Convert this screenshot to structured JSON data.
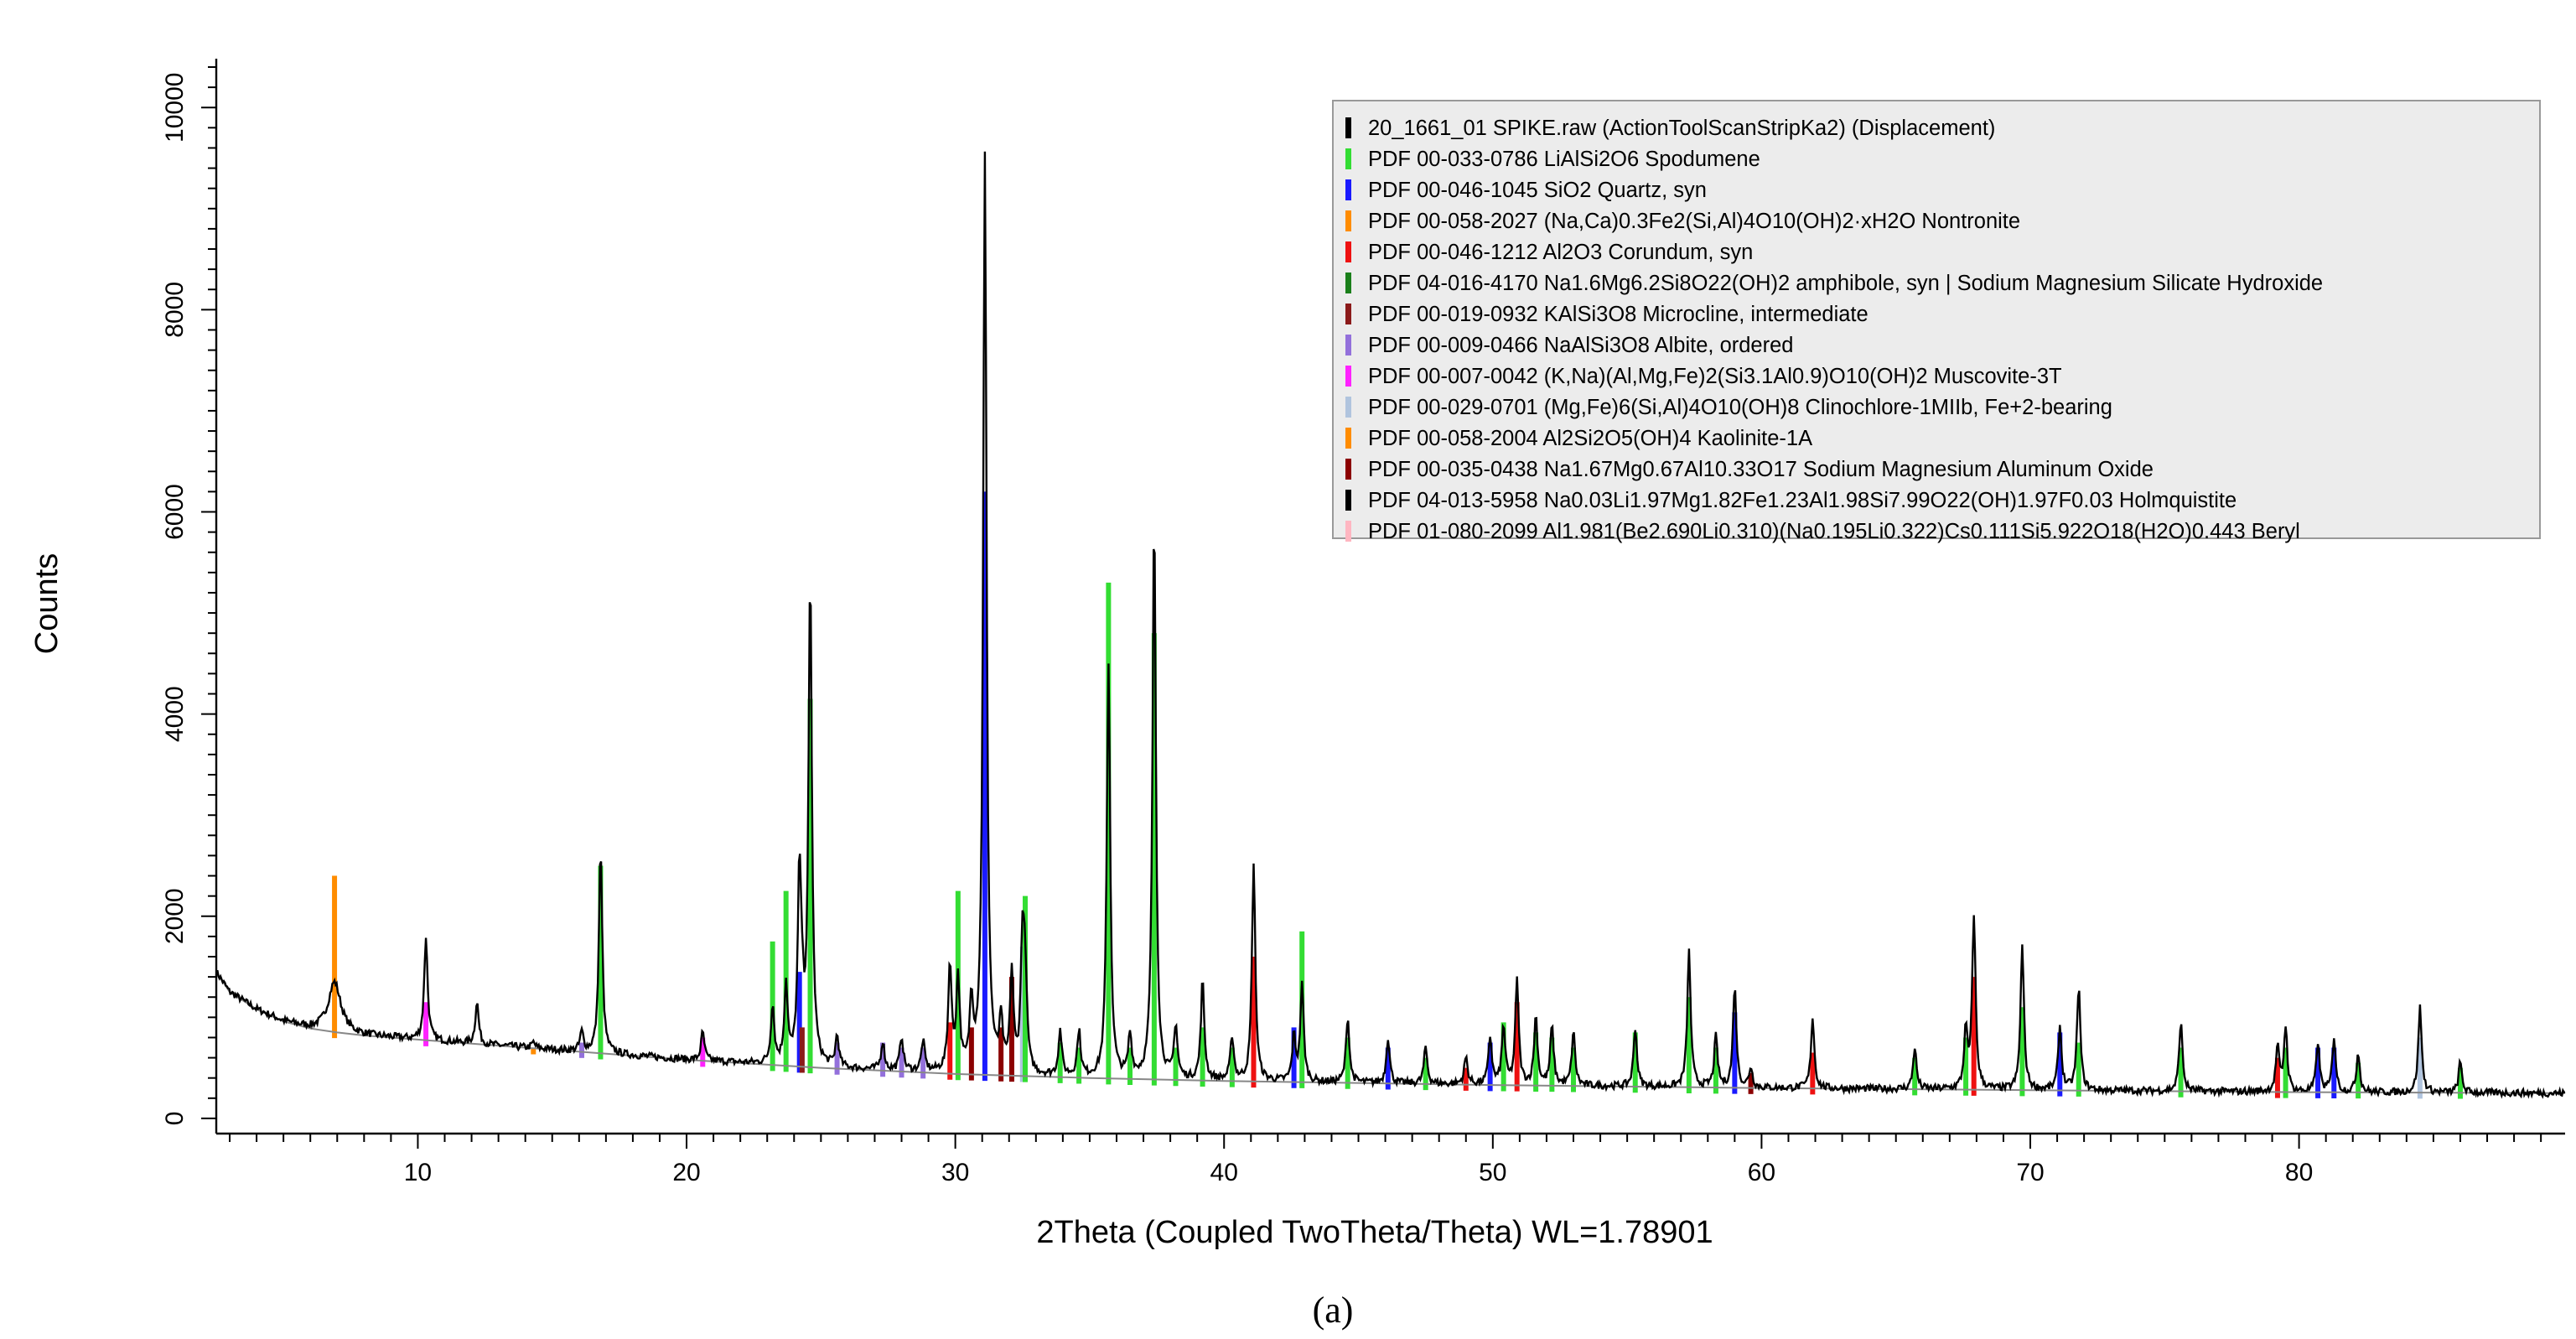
{
  "chart_data": {
    "type": "line",
    "title": "",
    "xlabel": "2Theta (Coupled TwoTheta/Theta) WL=1.78901",
    "ylabel": "Counts",
    "xlim": [
      2.5,
      89.9
    ],
    "ylim": [
      -150,
      10400
    ],
    "x_ticks": [
      10,
      20,
      30,
      40,
      50,
      60,
      70,
      80
    ],
    "x_minor_step": 1,
    "y_ticks": [
      0,
      2000,
      4000,
      6000,
      8000,
      10000
    ],
    "y_minor_step": 200,
    "grid": false,
    "legend_position": "top-right",
    "caption": "(a)",
    "legend": [
      {
        "label": "20_1661_01 SPIKE.raw (ActionToolScanStripKa2) (Displacement)",
        "color": "#000000"
      },
      {
        "label": "PDF 00-033-0786 LiAlSi2O6 Spodumene",
        "color": "#33dd33"
      },
      {
        "label": "PDF 00-046-1045 SiO2 Quartz, syn",
        "color": "#1a1aff"
      },
      {
        "label": "PDF 00-058-2027 (Na,Ca)0.3Fe2(Si,Al)4O10(OH)2·xH2O Nontronite",
        "color": "#ff8c00"
      },
      {
        "label": "PDF 00-046-1212 Al2O3 Corundum, syn",
        "color": "#ee1111"
      },
      {
        "label": "PDF 04-016-4170 Na1.6Mg6.2Si8O22(OH)2 amphibole, syn | Sodium Magnesium Silicate Hydroxide",
        "color": "#1a7f1a"
      },
      {
        "label": "PDF 00-019-0932 KAlSi3O8 Microcline, intermediate",
        "color": "#8b1a1a"
      },
      {
        "label": "PDF 00-009-0466 NaAlSi3O8 Albite, ordered",
        "color": "#9370db"
      },
      {
        "label": "PDF 00-007-0042 (K,Na)(Al,Mg,Fe)2(Si3.1Al0.9)O10(OH)2 Muscovite-3T",
        "color": "#ff22ff"
      },
      {
        "label": "PDF 00-029-0701 (Mg,Fe)6(Si,Al)4O10(OH)8 Clinochlore-1MIIb, Fe+2-bearing",
        "color": "#b0c4de"
      },
      {
        "label": "PDF 00-058-2004 Al2Si2O5(OH)4 Kaolinite-1A",
        "color": "#ff8c00"
      },
      {
        "label": "PDF 00-035-0438 Na1.67Mg0.67Al10.33O17 Sodium Magnesium Aluminum Oxide",
        "color": "#8b0000"
      },
      {
        "label": "PDF 04-013-5958 Na0.03Li1.97Mg1.82Fe1.23Al1.98Si7.99O22(OH)1.97F0.03 Holmquistite",
        "color": "#000000"
      },
      {
        "label": "PDF 01-080-2099 Al1.981(Be2.690Li0.310)(Na0.195Li0.322)Cs0.111Si5.922O18(H2O)0.443 Beryl",
        "color": "#ffb6c1"
      }
    ],
    "background": [
      [
        2.5,
        1450
      ],
      [
        3,
        1250
      ],
      [
        4,
        1080
      ],
      [
        5,
        960
      ],
      [
        6,
        890
      ],
      [
        7,
        850
      ],
      [
        8,
        820
      ],
      [
        10,
        780
      ],
      [
        15,
        680
      ],
      [
        20,
        580
      ],
      [
        25,
        500
      ],
      [
        30,
        440
      ],
      [
        35,
        400
      ],
      [
        40,
        370
      ],
      [
        50,
        330
      ],
      [
        60,
        300
      ],
      [
        70,
        280
      ],
      [
        80,
        260
      ],
      [
        89.9,
        250
      ]
    ],
    "peaks": [
      {
        "x": 6.9,
        "counts": 1350,
        "marker": 2400,
        "phase": 3
      },
      {
        "x": 10.3,
        "counts": 1800,
        "marker": 1150,
        "phase": 8
      },
      {
        "x": 12.2,
        "counts": 1150,
        "marker": 0,
        "phase": 0
      },
      {
        "x": 14.3,
        "counts": 750,
        "marker": 700,
        "phase": 3
      },
      {
        "x": 16.1,
        "counts": 850,
        "marker": 750,
        "phase": 7
      },
      {
        "x": 16.8,
        "counts": 2650,
        "marker": 2500,
        "phase": 1
      },
      {
        "x": 20.6,
        "counts": 850,
        "marker": 800,
        "phase": 8
      },
      {
        "x": 23.2,
        "counts": 1100,
        "marker": 1750,
        "phase": 1
      },
      {
        "x": 23.7,
        "counts": 1300,
        "marker": 2250,
        "phase": 1
      },
      {
        "x": 24.2,
        "counts": 2350,
        "marker": 1450,
        "phase": 2
      },
      {
        "x": 24.3,
        "counts": 900,
        "marker": 900,
        "phase": 6
      },
      {
        "x": 24.6,
        "counts": 5300,
        "marker": 4150,
        "phase": 1
      },
      {
        "x": 25.6,
        "counts": 800,
        "marker": 750,
        "phase": 7
      },
      {
        "x": 27.3,
        "counts": 750,
        "marker": 750,
        "phase": 7
      },
      {
        "x": 28.0,
        "counts": 800,
        "marker": 700,
        "phase": 7
      },
      {
        "x": 28.8,
        "counts": 750,
        "marker": 700,
        "phase": 7
      },
      {
        "x": 29.8,
        "counts": 1500,
        "marker": 950,
        "phase": 4
      },
      {
        "x": 30.1,
        "counts": 1350,
        "marker": 2250,
        "phase": 1
      },
      {
        "x": 30.6,
        "counts": 1100,
        "marker": 900,
        "phase": 11
      },
      {
        "x": 31.1,
        "counts": 9500,
        "marker": 6200,
        "phase": 2
      },
      {
        "x": 31.7,
        "counts": 900,
        "marker": 900,
        "phase": 11
      },
      {
        "x": 32.1,
        "counts": 1400,
        "marker": 1400,
        "phase": 11
      },
      {
        "x": 32.5,
        "counts": 1700,
        "marker": 1700,
        "phase": 9
      },
      {
        "x": 32.6,
        "counts": 1300,
        "marker": 2200,
        "phase": 1
      },
      {
        "x": 33.9,
        "counts": 850,
        "marker": 750,
        "phase": 1
      },
      {
        "x": 34.6,
        "counts": 850,
        "marker": 700,
        "phase": 1
      },
      {
        "x": 35.7,
        "counts": 4500,
        "marker": 5300,
        "phase": 1
      },
      {
        "x": 36.5,
        "counts": 800,
        "marker": 700,
        "phase": 1
      },
      {
        "x": 37.4,
        "counts": 5950,
        "marker": 4800,
        "phase": 1
      },
      {
        "x": 38.2,
        "counts": 900,
        "marker": 700,
        "phase": 1
      },
      {
        "x": 39.2,
        "counts": 1350,
        "marker": 900,
        "phase": 1
      },
      {
        "x": 40.3,
        "counts": 800,
        "marker": 700,
        "phase": 1
      },
      {
        "x": 41.1,
        "counts": 2500,
        "marker": 1600,
        "phase": 4
      },
      {
        "x": 42.6,
        "counts": 800,
        "marker": 900,
        "phase": 2
      },
      {
        "x": 42.9,
        "counts": 1300,
        "marker": 1850,
        "phase": 1
      },
      {
        "x": 44.6,
        "counts": 1000,
        "marker": 800,
        "phase": 1
      },
      {
        "x": 46.1,
        "counts": 800,
        "marker": 700,
        "phase": 2
      },
      {
        "x": 47.5,
        "counts": 700,
        "marker": 600,
        "phase": 1
      },
      {
        "x": 49.0,
        "counts": 600,
        "marker": 500,
        "phase": 4
      },
      {
        "x": 49.9,
        "counts": 800,
        "marker": 750,
        "phase": 2
      },
      {
        "x": 50.4,
        "counts": 900,
        "marker": 950,
        "phase": 1
      },
      {
        "x": 50.9,
        "counts": 1350,
        "marker": 1150,
        "phase": 4
      },
      {
        "x": 51.6,
        "counts": 1000,
        "marker": 850,
        "phase": 1
      },
      {
        "x": 52.2,
        "counts": 900,
        "marker": 800,
        "phase": 1
      },
      {
        "x": 53.0,
        "counts": 850,
        "marker": 700,
        "phase": 1
      },
      {
        "x": 55.3,
        "counts": 900,
        "marker": 850,
        "phase": 1
      },
      {
        "x": 57.3,
        "counts": 1650,
        "marker": 1200,
        "phase": 1
      },
      {
        "x": 58.3,
        "counts": 800,
        "marker": 700,
        "phase": 1
      },
      {
        "x": 59.0,
        "counts": 1300,
        "marker": 1050,
        "phase": 2
      },
      {
        "x": 59.6,
        "counts": 500,
        "marker": 450,
        "phase": 11
      },
      {
        "x": 61.9,
        "counts": 1000,
        "marker": 650,
        "phase": 4
      },
      {
        "x": 65.7,
        "counts": 700,
        "marker": 600,
        "phase": 1
      },
      {
        "x": 67.6,
        "counts": 850,
        "marker": 800,
        "phase": 1
      },
      {
        "x": 67.9,
        "counts": 2000,
        "marker": 1400,
        "phase": 4
      },
      {
        "x": 69.7,
        "counts": 1700,
        "marker": 1100,
        "phase": 1
      },
      {
        "x": 71.1,
        "counts": 900,
        "marker": 850,
        "phase": 2
      },
      {
        "x": 71.8,
        "counts": 1300,
        "marker": 750,
        "phase": 1
      },
      {
        "x": 75.6,
        "counts": 950,
        "marker": 700,
        "phase": 1
      },
      {
        "x": 79.2,
        "counts": 700,
        "marker": 600,
        "phase": 4
      },
      {
        "x": 79.5,
        "counts": 900,
        "marker": 700,
        "phase": 1
      },
      {
        "x": 80.7,
        "counts": 750,
        "marker": 700,
        "phase": 2
      },
      {
        "x": 81.3,
        "counts": 800,
        "marker": 700,
        "phase": 2
      },
      {
        "x": 82.2,
        "counts": 650,
        "marker": 550,
        "phase": 1
      },
      {
        "x": 84.5,
        "counts": 1100,
        "marker": 800,
        "phase": 9
      },
      {
        "x": 86.0,
        "counts": 550,
        "marker": 500,
        "phase": 1
      }
    ]
  }
}
